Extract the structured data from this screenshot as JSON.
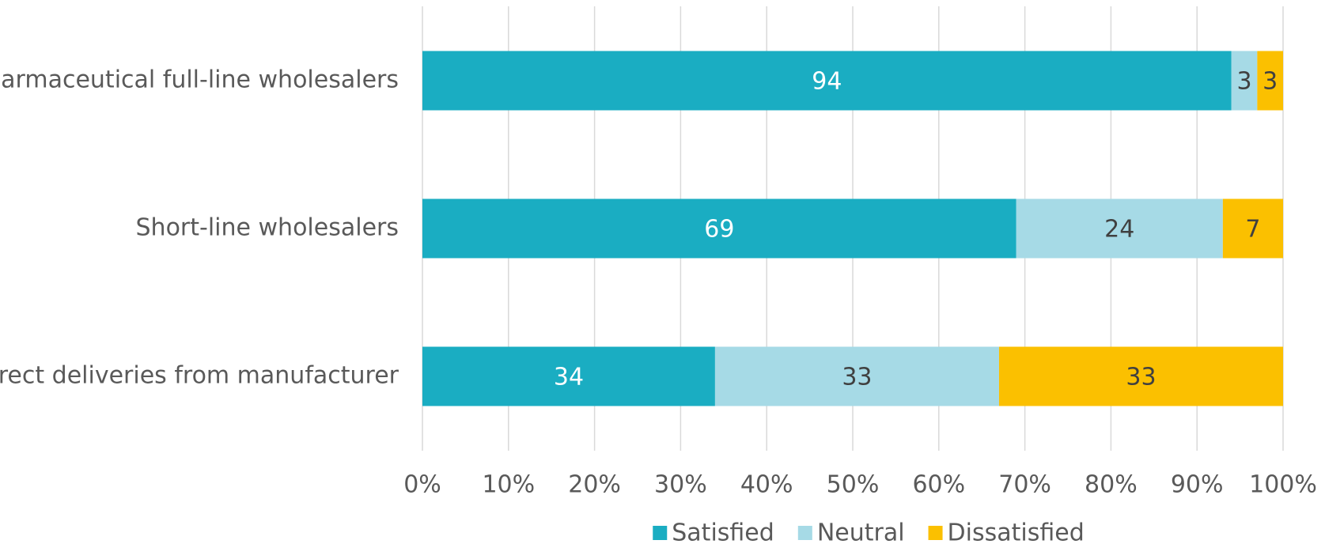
{
  "chart_data": {
    "type": "bar",
    "orientation": "horizontal",
    "stacked": "percent",
    "title": "",
    "xlabel": "",
    "ylabel": "",
    "categories": [
      "Pharmaceutical full-line wholesalers",
      "Short-line wholesalers",
      "Direct deliveries from manufacturer"
    ],
    "series": [
      {
        "name": "Satisfied",
        "color": "#1AADC2",
        "label_color": "#ffffff",
        "values": [
          94,
          69,
          34
        ]
      },
      {
        "name": "Neutral",
        "color": "#A6DAE6",
        "label_color": "#404040",
        "values": [
          3,
          24,
          33
        ]
      },
      {
        "name": "Dissatisfied",
        "color": "#FBC000",
        "label_color": "#404040",
        "values": [
          3,
          7,
          33
        ]
      }
    ],
    "xlim": [
      0,
      100
    ],
    "x_ticks": [
      "0%",
      "10%",
      "20%",
      "30%",
      "40%",
      "50%",
      "60%",
      "70%",
      "80%",
      "90%",
      "100%"
    ],
    "grid": true,
    "legend_position": "bottom"
  }
}
